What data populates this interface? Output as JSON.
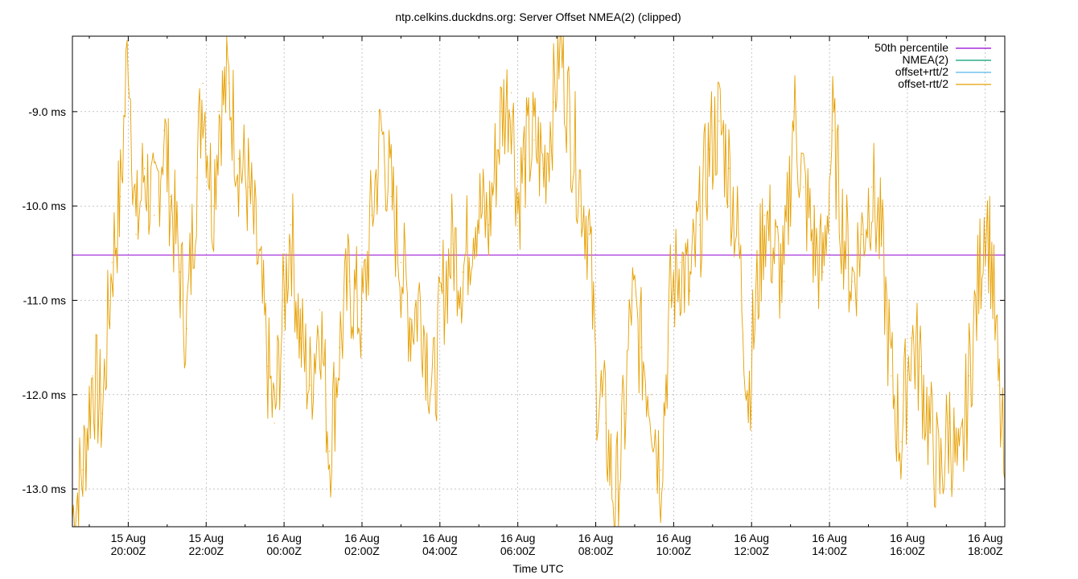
{
  "chart_data": {
    "type": "line",
    "title": "ntp.celkins.duckdns.org: Server Offset NMEA(2) (clipped)",
    "xlabel": "Time UTC",
    "ylabel": "",
    "ylim": [
      -13.4,
      -8.2
    ],
    "xlim": [
      "2025-08-15T18:34Z",
      "2025-08-16T18:30Z"
    ],
    "yticks": [
      {
        "value": -9.0,
        "label": "-9.0 ms"
      },
      {
        "value": -10.0,
        "label": "-10.0 ms"
      },
      {
        "value": -11.0,
        "label": "-11.0 ms"
      },
      {
        "value": -12.0,
        "label": "-12.0 ms"
      },
      {
        "value": -13.0,
        "label": "-13.0 ms"
      }
    ],
    "xticks": [
      {
        "time": "2025-08-15T20:00Z",
        "line1": "15 Aug",
        "line2": "20:00Z"
      },
      {
        "time": "2025-08-15T22:00Z",
        "line1": "15 Aug",
        "line2": "22:00Z"
      },
      {
        "time": "2025-08-16T00:00Z",
        "line1": "16 Aug",
        "line2": "00:00Z"
      },
      {
        "time": "2025-08-16T02:00Z",
        "line1": "16 Aug",
        "line2": "02:00Z"
      },
      {
        "time": "2025-08-16T04:00Z",
        "line1": "16 Aug",
        "line2": "04:00Z"
      },
      {
        "time": "2025-08-16T06:00Z",
        "line1": "16 Aug",
        "line2": "06:00Z"
      },
      {
        "time": "2025-08-16T08:00Z",
        "line1": "16 Aug",
        "line2": "08:00Z"
      },
      {
        "time": "2025-08-16T10:00Z",
        "line1": "16 Aug",
        "line2": "10:00Z"
      },
      {
        "time": "2025-08-16T12:00Z",
        "line1": "16 Aug",
        "line2": "12:00Z"
      },
      {
        "time": "2025-08-16T14:00Z",
        "line1": "16 Aug",
        "line2": "14:00Z"
      },
      {
        "time": "2025-08-16T16:00Z",
        "line1": "16 Aug",
        "line2": "16:00Z"
      },
      {
        "time": "2025-08-16T18:00Z",
        "line1": "16 Aug",
        "line2": "18:00Z"
      }
    ],
    "grid": true,
    "legend_position": "top-right",
    "legend": [
      {
        "label": "50th percentile",
        "color": "#9400d3"
      },
      {
        "label": "NMEA(2)",
        "color": "#009e73"
      },
      {
        "label": "offset+rtt/2",
        "color": "#56b4e9"
      },
      {
        "label": "offset-rtt/2",
        "color": "#e69f00"
      }
    ],
    "series": [
      {
        "name": "50th percentile",
        "color": "#9400d3",
        "points": [
          {
            "x": "2025-08-15T18:34Z",
            "y": -10.52
          },
          {
            "x": "2025-08-16T18:30Z",
            "y": -10.52
          }
        ]
      },
      {
        "name": "offset-rtt/2",
        "color": "#e69f00",
        "points": [
          {
            "x": "2025-08-15T18:34Z",
            "y": -13.3
          },
          {
            "x": "2025-08-15T18:50Z",
            "y": -12.8
          },
          {
            "x": "2025-08-15T19:05Z",
            "y": -11.8
          },
          {
            "x": "2025-08-15T19:20Z",
            "y": -12.2
          },
          {
            "x": "2025-08-15T19:35Z",
            "y": -10.6
          },
          {
            "x": "2025-08-15T19:48Z",
            "y": -9.9
          },
          {
            "x": "2025-08-15T20:00Z",
            "y": -8.2
          },
          {
            "x": "2025-08-15T20:12Z",
            "y": -10.3
          },
          {
            "x": "2025-08-15T20:25Z",
            "y": -9.6
          },
          {
            "x": "2025-08-15T20:40Z",
            "y": -10.1
          },
          {
            "x": "2025-08-15T20:55Z",
            "y": -9.2
          },
          {
            "x": "2025-08-15T21:05Z",
            "y": -9.9
          },
          {
            "x": "2025-08-15T21:20Z",
            "y": -10.7
          },
          {
            "x": "2025-08-15T21:30Z",
            "y": -11.3
          },
          {
            "x": "2025-08-15T21:45Z",
            "y": -9.7
          },
          {
            "x": "2025-08-15T21:55Z",
            "y": -8.7
          },
          {
            "x": "2025-08-15T22:10Z",
            "y": -10.0
          },
          {
            "x": "2025-08-15T22:20Z",
            "y": -9.0
          },
          {
            "x": "2025-08-15T22:35Z",
            "y": -8.7
          },
          {
            "x": "2025-08-15T22:50Z",
            "y": -9.5
          },
          {
            "x": "2025-08-15T23:05Z",
            "y": -9.8
          },
          {
            "x": "2025-08-15T23:20Z",
            "y": -10.6
          },
          {
            "x": "2025-08-15T23:35Z",
            "y": -11.7
          },
          {
            "x": "2025-08-15T23:45Z",
            "y": -12.3
          },
          {
            "x": "2025-08-16T00:00Z",
            "y": -11.0
          },
          {
            "x": "2025-08-16T00:10Z",
            "y": -10.2
          },
          {
            "x": "2025-08-16T00:25Z",
            "y": -11.4
          },
          {
            "x": "2025-08-16T00:40Z",
            "y": -11.9
          },
          {
            "x": "2025-08-16T00:55Z",
            "y": -11.1
          },
          {
            "x": "2025-08-16T01:10Z",
            "y": -12.6
          },
          {
            "x": "2025-08-16T01:25Z",
            "y": -11.5
          },
          {
            "x": "2025-08-16T01:40Z",
            "y": -10.8
          },
          {
            "x": "2025-08-16T02:00Z",
            "y": -11.2
          },
          {
            "x": "2025-08-16T02:15Z",
            "y": -10.1
          },
          {
            "x": "2025-08-16T02:30Z",
            "y": -9.2
          },
          {
            "x": "2025-08-16T02:45Z",
            "y": -9.9
          },
          {
            "x": "2025-08-16T03:00Z",
            "y": -10.6
          },
          {
            "x": "2025-08-16T03:15Z",
            "y": -11.2
          },
          {
            "x": "2025-08-16T03:30Z",
            "y": -11.0
          },
          {
            "x": "2025-08-16T03:50Z",
            "y": -12.0
          },
          {
            "x": "2025-08-16T04:05Z",
            "y": -10.9
          },
          {
            "x": "2025-08-16T04:20Z",
            "y": -10.4
          },
          {
            "x": "2025-08-16T04:35Z",
            "y": -10.7
          },
          {
            "x": "2025-08-16T04:55Z",
            "y": -10.0
          },
          {
            "x": "2025-08-16T05:15Z",
            "y": -10.2
          },
          {
            "x": "2025-08-16T05:35Z",
            "y": -9.0
          },
          {
            "x": "2025-08-16T05:50Z",
            "y": -8.8
          },
          {
            "x": "2025-08-16T06:00Z",
            "y": -10.0
          },
          {
            "x": "2025-08-16T06:10Z",
            "y": -9.5
          },
          {
            "x": "2025-08-16T06:25Z",
            "y": -9.3
          },
          {
            "x": "2025-08-16T06:40Z",
            "y": -9.6
          },
          {
            "x": "2025-08-16T06:55Z",
            "y": -8.9
          },
          {
            "x": "2025-08-16T07:05Z",
            "y": -8.2
          },
          {
            "x": "2025-08-16T07:20Z",
            "y": -9.1
          },
          {
            "x": "2025-08-16T07:35Z",
            "y": -9.7
          },
          {
            "x": "2025-08-16T07:50Z",
            "y": -10.3
          },
          {
            "x": "2025-08-16T08:00Z",
            "y": -11.8
          },
          {
            "x": "2025-08-16T08:15Z",
            "y": -12.3
          },
          {
            "x": "2025-08-16T08:30Z",
            "y": -13.2
          },
          {
            "x": "2025-08-16T08:45Z",
            "y": -12.2
          },
          {
            "x": "2025-08-16T08:55Z",
            "y": -11.0
          },
          {
            "x": "2025-08-16T09:10Z",
            "y": -11.5
          },
          {
            "x": "2025-08-16T09:25Z",
            "y": -12.0
          },
          {
            "x": "2025-08-16T09:40Z",
            "y": -12.8
          },
          {
            "x": "2025-08-16T09:55Z",
            "y": -11.0
          },
          {
            "x": "2025-08-16T10:10Z",
            "y": -10.6
          },
          {
            "x": "2025-08-16T10:25Z",
            "y": -10.9
          },
          {
            "x": "2025-08-16T10:40Z",
            "y": -10.2
          },
          {
            "x": "2025-08-16T10:55Z",
            "y": -9.4
          },
          {
            "x": "2025-08-16T11:10Z",
            "y": -9.1
          },
          {
            "x": "2025-08-16T11:25Z",
            "y": -9.6
          },
          {
            "x": "2025-08-16T11:40Z",
            "y": -10.4
          },
          {
            "x": "2025-08-16T11:55Z",
            "y": -12.0
          },
          {
            "x": "2025-08-16T12:05Z",
            "y": -11.2
          },
          {
            "x": "2025-08-16T12:20Z",
            "y": -10.1
          },
          {
            "x": "2025-08-16T12:35Z",
            "y": -10.5
          },
          {
            "x": "2025-08-16T12:50Z",
            "y": -10.8
          },
          {
            "x": "2025-08-16T13:05Z",
            "y": -9.0
          },
          {
            "x": "2025-08-16T13:20Z",
            "y": -9.8
          },
          {
            "x": "2025-08-16T13:35Z",
            "y": -10.4
          },
          {
            "x": "2025-08-16T13:50Z",
            "y": -10.7
          },
          {
            "x": "2025-08-16T14:05Z",
            "y": -9.2
          },
          {
            "x": "2025-08-16T14:20Z",
            "y": -10.2
          },
          {
            "x": "2025-08-16T14:35Z",
            "y": -10.8
          },
          {
            "x": "2025-08-16T14:50Z",
            "y": -10.3
          },
          {
            "x": "2025-08-16T15:05Z",
            "y": -9.8
          },
          {
            "x": "2025-08-16T15:20Z",
            "y": -10.4
          },
          {
            "x": "2025-08-16T15:35Z",
            "y": -11.8
          },
          {
            "x": "2025-08-16T15:50Z",
            "y": -12.5
          },
          {
            "x": "2025-08-16T16:05Z",
            "y": -11.4
          },
          {
            "x": "2025-08-16T16:20Z",
            "y": -11.7
          },
          {
            "x": "2025-08-16T16:35Z",
            "y": -12.4
          },
          {
            "x": "2025-08-16T16:50Z",
            "y": -12.9
          },
          {
            "x": "2025-08-16T17:05Z",
            "y": -12.3
          },
          {
            "x": "2025-08-16T17:20Z",
            "y": -13.0
          },
          {
            "x": "2025-08-16T17:35Z",
            "y": -11.8
          },
          {
            "x": "2025-08-16T17:50Z",
            "y": -10.8
          },
          {
            "x": "2025-08-16T18:00Z",
            "y": -10.0
          },
          {
            "x": "2025-08-16T18:10Z",
            "y": -10.6
          },
          {
            "x": "2025-08-16T18:20Z",
            "y": -11.9
          },
          {
            "x": "2025-08-16T18:30Z",
            "y": -12.9
          }
        ]
      }
    ]
  }
}
